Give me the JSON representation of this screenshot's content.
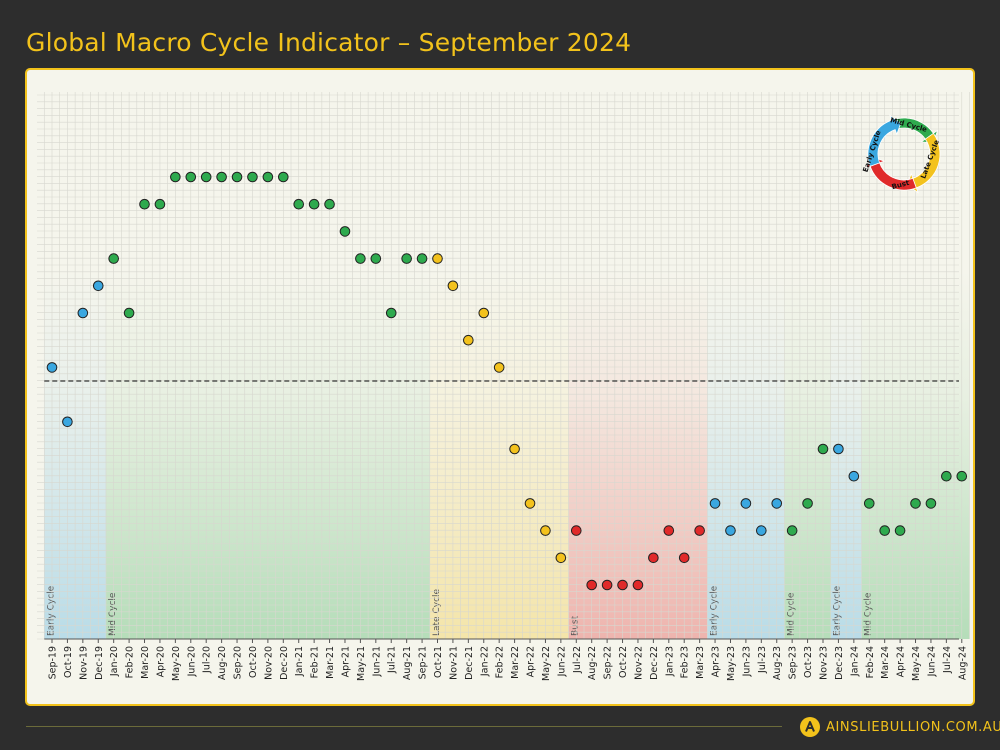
{
  "header": {
    "title": "Global Macro Cycle Indicator – September 2024"
  },
  "footer": {
    "brand": "AINSLIEBULLION.COM.AU"
  },
  "cycle_legend": {
    "labels": [
      "Early Cycle",
      "Mid Cycle",
      "Late Cycle",
      "Bust"
    ],
    "colors": {
      "Early Cycle": "#3aa7e0",
      "Mid Cycle": "#2eaa4e",
      "Late Cycle": "#f3c21d",
      "Bust": "#e02a2a"
    }
  },
  "chart_data": {
    "type": "scatter",
    "title": "Global Macro Cycle Indicator – September 2024",
    "xlabel": "",
    "ylabel": "",
    "grid": true,
    "categories": [
      "Sep-19",
      "Oct-19",
      "Nov-19",
      "Dec-19",
      "Jan-20",
      "Feb-20",
      "Mar-20",
      "Apr-20",
      "May-20",
      "Jun-20",
      "Jul-20",
      "Aug-20",
      "Sep-20",
      "Oct-20",
      "Nov-20",
      "Dec-20",
      "Jan-21",
      "Feb-21",
      "Mar-21",
      "Apr-21",
      "May-21",
      "Jun-21",
      "Jul-21",
      "Aug-21",
      "Sep-21",
      "Oct-21",
      "Nov-21",
      "Dec-21",
      "Jan-22",
      "Feb-22",
      "Mar-22",
      "Apr-22",
      "May-22",
      "Jun-22",
      "Jul-22",
      "Aug-22",
      "Sep-22",
      "Oct-22",
      "Nov-22",
      "Dec-22",
      "Jan-23",
      "Feb-23",
      "Mar-23",
      "Apr-23",
      "May-23",
      "Jun-23",
      "Jul-23",
      "Aug-23",
      "Sep-23",
      "Oct-23",
      "Nov-23",
      "Dec-23",
      "Jan-24",
      "Feb-24",
      "Mar-24",
      "Apr-24",
      "May-24",
      "Jun-24",
      "Jul-24",
      "Aug-24"
    ],
    "values": [
      0.5,
      -1.5,
      2.5,
      3.5,
      4.5,
      2.5,
      6.5,
      6.5,
      7.5,
      7.5,
      7.5,
      7.5,
      7.5,
      7.5,
      7.5,
      7.5,
      6.5,
      6.5,
      6.5,
      5.5,
      4.5,
      4.5,
      2.5,
      4.5,
      4.5,
      4.5,
      3.5,
      1.5,
      2.5,
      0.5,
      -2.5,
      -4.5,
      -5.5,
      -6.5,
      -5.5,
      -7.5,
      -7.5,
      -7.5,
      -7.5,
      -6.5,
      -5.5,
      -6.5,
      -5.5,
      -4.5,
      -5.5,
      -4.5,
      -5.5,
      -4.5,
      -5.5,
      -4.5,
      -2.5,
      -2.5,
      -3.5,
      -4.5,
      -5.5,
      -5.5,
      -4.5,
      -4.5,
      -3.5,
      -3.5
    ],
    "phases": [
      "Early Cycle",
      "Early Cycle",
      "Early Cycle",
      "Early Cycle",
      "Mid Cycle",
      "Mid Cycle",
      "Mid Cycle",
      "Mid Cycle",
      "Mid Cycle",
      "Mid Cycle",
      "Mid Cycle",
      "Mid Cycle",
      "Mid Cycle",
      "Mid Cycle",
      "Mid Cycle",
      "Mid Cycle",
      "Mid Cycle",
      "Mid Cycle",
      "Mid Cycle",
      "Mid Cycle",
      "Mid Cycle",
      "Mid Cycle",
      "Mid Cycle",
      "Mid Cycle",
      "Mid Cycle",
      "Late Cycle",
      "Late Cycle",
      "Late Cycle",
      "Late Cycle",
      "Late Cycle",
      "Late Cycle",
      "Late Cycle",
      "Late Cycle",
      "Late Cycle",
      "Bust",
      "Bust",
      "Bust",
      "Bust",
      "Bust",
      "Bust",
      "Bust",
      "Bust",
      "Bust",
      "Early Cycle",
      "Early Cycle",
      "Early Cycle",
      "Early Cycle",
      "Early Cycle",
      "Mid Cycle",
      "Mid Cycle",
      "Mid Cycle",
      "Early Cycle",
      "Early Cycle",
      "Mid Cycle",
      "Mid Cycle",
      "Mid Cycle",
      "Mid Cycle",
      "Mid Cycle",
      "Mid Cycle",
      "Mid Cycle"
    ],
    "ylim": [
      -10,
      10
    ],
    "reference_line": {
      "y": 0,
      "style": "dashed"
    },
    "bands": [
      {
        "label": "Early Cycle",
        "start": "Sep-19",
        "end": "Dec-19",
        "color": "#3aa7e0"
      },
      {
        "label": "Mid Cycle",
        "start": "Jan-20",
        "end": "Sep-21",
        "color": "#2eaa4e"
      },
      {
        "label": "Late Cycle",
        "start": "Oct-21",
        "end": "Jun-22",
        "color": "#f3c21d"
      },
      {
        "label": "Bust",
        "start": "Jul-22",
        "end": "Mar-23",
        "color": "#e02a2a"
      },
      {
        "label": "Early Cycle",
        "start": "Apr-23",
        "end": "Aug-23",
        "color": "#3aa7e0"
      },
      {
        "label": "Mid Cycle",
        "start": "Sep-23",
        "end": "Nov-23",
        "color": "#2eaa4e"
      },
      {
        "label": "Early Cycle",
        "start": "Dec-23",
        "end": "Jan-24",
        "color": "#3aa7e0"
      },
      {
        "label": "Mid Cycle",
        "start": "Feb-24",
        "end": "Aug-24",
        "color": "#2eaa4e"
      }
    ]
  }
}
